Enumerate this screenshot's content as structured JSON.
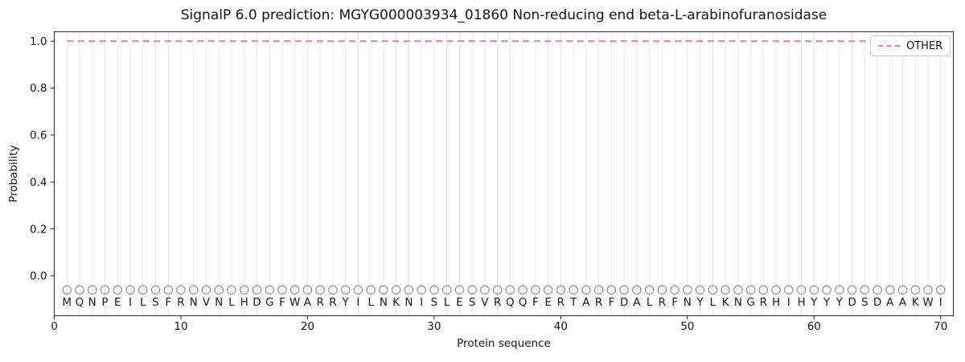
{
  "chart_data": {
    "type": "line",
    "title": "SignalP 6.0 prediction: MGYG000003934_01860 Non-reducing end beta-L-arabinofuranosidase",
    "xlabel": "Protein sequence",
    "ylabel": "Probability",
    "xlim": [
      0,
      71
    ],
    "ylim": [
      -0.17,
      1.04
    ],
    "xticks": [
      0,
      10,
      20,
      30,
      40,
      50,
      60,
      70
    ],
    "yticks": [
      0.0,
      0.2,
      0.4,
      0.6,
      0.8,
      1.0
    ],
    "grid": "light vertical gridline at each residue position 1-70",
    "legend_position": "upper right",
    "series": [
      {
        "name": "OTHER",
        "linestyle": "dashed",
        "color": "#ee8585",
        "x_start": 1,
        "x_end": 70,
        "constant_y": 1.0
      }
    ],
    "sequence": "MQNPEILSFRNVNLHDGFWARRYILNKNISLESVRQQFERTARFDALRFNYLKNGRHIHYYYDSDAAKWI",
    "sequence_positions": "1-70",
    "residue_markers": {
      "symbol": "open-circle",
      "y_value": -0.06,
      "color": "#9e9e9e"
    },
    "colors": {
      "other_line": "#ee8585",
      "gridline": "#e9e9e9",
      "marker_outline": "#9e9e9e",
      "residue_text": "#1a1a1a",
      "spine": "#2b2b2b"
    }
  }
}
